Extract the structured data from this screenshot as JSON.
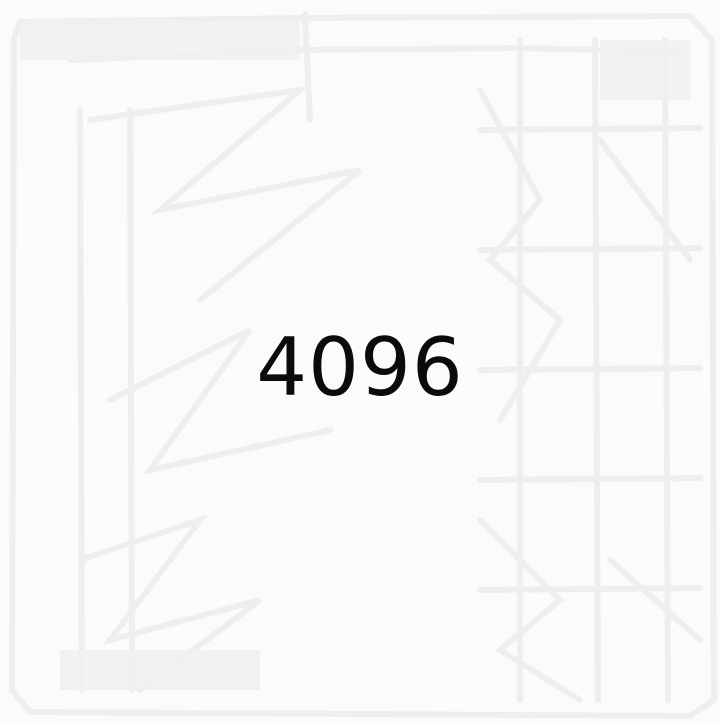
{
  "display": {
    "number": "4096"
  },
  "colors": {
    "background": "#fbfbfb",
    "text": "#0b0b0b",
    "scribble": "#ececec"
  }
}
